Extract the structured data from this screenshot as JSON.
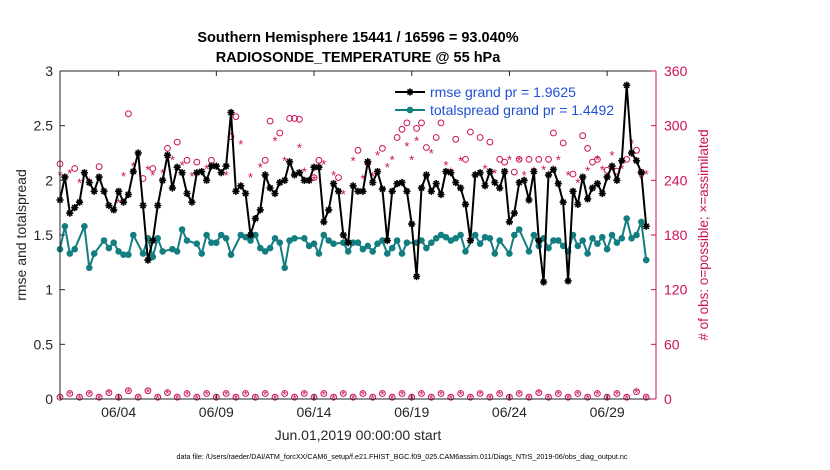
{
  "chart_data": {
    "type": "line",
    "title_line1": "Southern Hemisphere 15441 / 16596 = 93.040%",
    "title_line2": "RADIOSONDE_TEMPERATURE @ 55 hPa",
    "xlabel": "Jun.01,2019 00:00:00 start",
    "ylabel_left": "rmse and totalspread",
    "ylabel_right": "# of obs: o=possible; ×=assimilated",
    "footer": "data file: /Users/raeder/DAI/ATM_forcXX/CAM6_setup/f.e21.FHIST_BGC.f09_025.CAM6assim.011/Diags_NTrS_2019-06/obs_diag_output.nc",
    "xlim": [
      0,
      30.5
    ],
    "ylim_left": [
      0,
      3
    ],
    "ylim_right": [
      0,
      360
    ],
    "x_ticks": [
      3,
      8,
      13,
      18,
      23,
      28
    ],
    "x_tick_labels": [
      "06/04",
      "06/09",
      "06/14",
      "06/19",
      "06/24",
      "06/29"
    ],
    "y_left_ticks": [
      0,
      0.5,
      1,
      1.5,
      2,
      2.5,
      3
    ],
    "y_left_tick_labels": [
      "0",
      "0.5",
      "1",
      "1.5",
      "2",
      "2.5",
      "3"
    ],
    "y_right_ticks": [
      0,
      60,
      120,
      180,
      240,
      300,
      360
    ],
    "y_right_tick_labels": [
      "0",
      "60",
      "120",
      "180",
      "240",
      "300",
      "360"
    ],
    "legend": [
      {
        "name": "rmse grand pr = 1.9625",
        "color": "#000000"
      },
      {
        "name": "totalspread grand pr = 1.4492",
        "color": "#137e80"
      }
    ],
    "rmse": [
      [
        0.0,
        1.82
      ],
      [
        0.25,
        2.03
      ],
      [
        0.5,
        1.7
      ],
      [
        0.75,
        1.75
      ],
      [
        1.0,
        1.8
      ],
      [
        1.25,
        2.07
      ],
      [
        1.5,
        1.98
      ],
      [
        1.75,
        1.9
      ],
      [
        2.0,
        2.03
      ],
      [
        2.25,
        1.9
      ],
      [
        2.5,
        1.77
      ],
      [
        2.75,
        1.73
      ],
      [
        3.0,
        1.9
      ],
      [
        3.25,
        1.8
      ],
      [
        3.5,
        1.87
      ],
      [
        3.75,
        2.08
      ],
      [
        4.0,
        2.25
      ],
      [
        4.25,
        1.77
      ],
      [
        4.5,
        1.27
      ],
      [
        4.75,
        1.45
      ],
      [
        5.0,
        1.77
      ],
      [
        5.25,
        2.0
      ],
      [
        5.5,
        2.23
      ],
      [
        5.75,
        1.93
      ],
      [
        6.0,
        2.12
      ],
      [
        6.25,
        2.07
      ],
      [
        6.5,
        1.88
      ],
      [
        6.75,
        1.8
      ],
      [
        7.0,
        2.07
      ],
      [
        7.25,
        2.08
      ],
      [
        7.5,
        2.0
      ],
      [
        7.75,
        2.13
      ],
      [
        8.0,
        2.13
      ],
      [
        8.25,
        2.07
      ],
      [
        8.5,
        2.13
      ],
      [
        8.75,
        2.62
      ],
      [
        9.0,
        1.9
      ],
      [
        9.25,
        1.95
      ],
      [
        9.5,
        1.88
      ],
      [
        9.75,
        1.5
      ],
      [
        10.0,
        1.65
      ],
      [
        10.25,
        1.73
      ],
      [
        10.5,
        2.05
      ],
      [
        10.75,
        1.93
      ],
      [
        11.0,
        1.88
      ],
      [
        11.25,
        1.98
      ],
      [
        11.5,
        2.0
      ],
      [
        11.75,
        2.17
      ],
      [
        12.0,
        2.05
      ],
      [
        12.25,
        2.07
      ],
      [
        12.5,
        2.0
      ],
      [
        12.75,
        2.0
      ],
      [
        13.0,
        2.12
      ],
      [
        13.25,
        2.12
      ],
      [
        13.5,
        1.62
      ],
      [
        13.75,
        1.73
      ],
      [
        14.0,
        1.97
      ],
      [
        14.25,
        1.9
      ],
      [
        14.5,
        1.5
      ],
      [
        14.75,
        1.43
      ],
      [
        15.0,
        1.95
      ],
      [
        15.25,
        1.9
      ],
      [
        15.5,
        1.9
      ],
      [
        15.75,
        2.17
      ],
      [
        16.0,
        1.98
      ],
      [
        16.25,
        2.08
      ],
      [
        16.5,
        1.92
      ],
      [
        16.75,
        1.45
      ],
      [
        17.0,
        1.9
      ],
      [
        17.25,
        1.97
      ],
      [
        17.5,
        1.98
      ],
      [
        17.75,
        1.9
      ],
      [
        18.0,
        1.6
      ],
      [
        18.25,
        1.12
      ],
      [
        18.5,
        1.93
      ],
      [
        18.75,
        2.05
      ],
      [
        19.0,
        1.9
      ],
      [
        19.25,
        1.97
      ],
      [
        19.5,
        1.87
      ],
      [
        19.75,
        2.08
      ],
      [
        20.0,
        2.07
      ],
      [
        20.25,
        1.98
      ],
      [
        20.5,
        1.93
      ],
      [
        20.75,
        1.78
      ],
      [
        21.0,
        1.45
      ],
      [
        21.25,
        2.05
      ],
      [
        21.5,
        2.07
      ],
      [
        21.75,
        1.95
      ],
      [
        22.0,
        2.08
      ],
      [
        22.25,
        1.98
      ],
      [
        22.5,
        1.93
      ],
      [
        22.75,
        2.08
      ],
      [
        23.0,
        1.62
      ],
      [
        23.25,
        1.7
      ],
      [
        23.5,
        1.98
      ],
      [
        23.75,
        2.0
      ],
      [
        24.0,
        1.82
      ],
      [
        24.25,
        2.08
      ],
      [
        24.5,
        1.45
      ],
      [
        24.75,
        1.07
      ],
      [
        25.0,
        2.05
      ],
      [
        25.25,
        2.1
      ],
      [
        25.5,
        1.97
      ],
      [
        25.75,
        1.8
      ],
      [
        26.0,
        1.08
      ],
      [
        26.25,
        1.9
      ],
      [
        26.5,
        1.78
      ],
      [
        26.75,
        2.03
      ],
      [
        27.0,
        1.83
      ],
      [
        27.25,
        1.93
      ],
      [
        27.5,
        1.97
      ],
      [
        27.75,
        1.88
      ],
      [
        28.0,
        2.03
      ],
      [
        28.25,
        2.13
      ],
      [
        28.5,
        2.0
      ],
      [
        28.75,
        2.18
      ],
      [
        29.0,
        2.87
      ],
      [
        29.25,
        2.25
      ],
      [
        29.5,
        2.18
      ],
      [
        29.75,
        2.07
      ],
      [
        30.0,
        1.58
      ]
    ],
    "totalspread": [
      [
        0.0,
        1.37
      ],
      [
        0.25,
        1.58
      ],
      [
        0.5,
        1.33
      ],
      [
        0.75,
        1.37
      ],
      [
        1.25,
        1.58
      ],
      [
        1.5,
        1.2
      ],
      [
        1.75,
        1.33
      ],
      [
        2.25,
        1.45
      ],
      [
        2.5,
        1.38
      ],
      [
        2.75,
        1.43
      ],
      [
        3.0,
        1.35
      ],
      [
        3.25,
        1.32
      ],
      [
        3.5,
        1.32
      ],
      [
        3.75,
        1.5
      ],
      [
        4.25,
        1.33
      ],
      [
        4.5,
        1.47
      ],
      [
        4.75,
        1.3
      ],
      [
        5.0,
        1.47
      ],
      [
        5.25,
        1.35
      ],
      [
        5.75,
        1.37
      ],
      [
        6.0,
        1.35
      ],
      [
        6.25,
        1.55
      ],
      [
        6.5,
        1.45
      ],
      [
        7.0,
        1.42
      ],
      [
        7.25,
        1.33
      ],
      [
        7.5,
        1.5
      ],
      [
        7.75,
        1.43
      ],
      [
        8.0,
        1.43
      ],
      [
        8.25,
        1.5
      ],
      [
        8.5,
        1.47
      ],
      [
        8.75,
        1.32
      ],
      [
        9.25,
        1.5
      ],
      [
        9.5,
        1.48
      ],
      [
        9.75,
        1.45
      ],
      [
        10.0,
        1.5
      ],
      [
        10.25,
        1.38
      ],
      [
        10.5,
        1.35
      ],
      [
        10.75,
        1.38
      ],
      [
        11.0,
        1.47
      ],
      [
        11.25,
        1.43
      ],
      [
        11.5,
        1.2
      ],
      [
        11.75,
        1.45
      ],
      [
        12.0,
        1.47
      ],
      [
        12.5,
        1.47
      ],
      [
        12.75,
        1.4
      ],
      [
        13.0,
        1.42
      ],
      [
        13.25,
        1.33
      ],
      [
        13.5,
        1.5
      ],
      [
        13.75,
        1.45
      ],
      [
        14.0,
        1.42
      ],
      [
        14.5,
        1.43
      ],
      [
        14.75,
        1.35
      ],
      [
        15.0,
        1.43
      ],
      [
        15.25,
        1.43
      ],
      [
        15.5,
        1.37
      ],
      [
        15.75,
        1.4
      ],
      [
        16.0,
        1.35
      ],
      [
        16.25,
        1.42
      ],
      [
        16.5,
        1.45
      ],
      [
        16.75,
        1.33
      ],
      [
        17.0,
        1.38
      ],
      [
        17.25,
        1.45
      ],
      [
        17.5,
        1.33
      ],
      [
        17.75,
        1.43
      ],
      [
        18.25,
        1.43
      ],
      [
        18.5,
        1.45
      ],
      [
        18.75,
        1.38
      ],
      [
        19.0,
        1.43
      ],
      [
        19.25,
        1.47
      ],
      [
        19.5,
        1.5
      ],
      [
        19.75,
        1.48
      ],
      [
        20.0,
        1.45
      ],
      [
        20.25,
        1.47
      ],
      [
        20.5,
        1.5
      ],
      [
        20.75,
        1.35
      ],
      [
        21.25,
        1.5
      ],
      [
        21.5,
        1.42
      ],
      [
        21.75,
        1.48
      ],
      [
        22.0,
        1.47
      ],
      [
        22.25,
        1.33
      ],
      [
        22.5,
        1.45
      ],
      [
        23.0,
        1.33
      ],
      [
        23.25,
        1.5
      ],
      [
        23.5,
        1.55
      ],
      [
        24.0,
        1.35
      ],
      [
        24.25,
        1.5
      ],
      [
        24.5,
        1.4
      ],
      [
        24.75,
        1.47
      ],
      [
        25.0,
        1.38
      ],
      [
        25.25,
        1.45
      ],
      [
        25.5,
        1.45
      ],
      [
        25.75,
        1.4
      ],
      [
        26.0,
        1.35
      ],
      [
        26.25,
        1.5
      ],
      [
        26.5,
        1.4
      ],
      [
        26.75,
        1.45
      ],
      [
        27.0,
        1.33
      ],
      [
        27.25,
        1.47
      ],
      [
        27.5,
        1.42
      ],
      [
        27.75,
        1.48
      ],
      [
        28.0,
        1.37
      ],
      [
        28.25,
        1.5
      ],
      [
        28.5,
        1.43
      ],
      [
        28.75,
        1.47
      ],
      [
        29.0,
        1.65
      ],
      [
        29.25,
        1.47
      ],
      [
        29.5,
        1.5
      ],
      [
        29.75,
        1.62
      ],
      [
        30.0,
        1.27
      ]
    ],
    "obs_possible": [
      [
        0.0,
        258
      ],
      [
        0.75,
        253
      ],
      [
        2.0,
        255
      ],
      [
        3.5,
        313
      ],
      [
        4.25,
        242
      ],
      [
        4.75,
        253
      ],
      [
        5.5,
        275
      ],
      [
        6.0,
        282
      ],
      [
        6.5,
        262
      ],
      [
        7.0,
        260
      ],
      [
        7.75,
        262
      ],
      [
        8.75,
        288
      ],
      [
        9.0,
        310
      ],
      [
        10.5,
        262
      ],
      [
        10.75,
        305
      ],
      [
        11.25,
        292
      ],
      [
        11.75,
        308
      ],
      [
        12.0,
        308
      ],
      [
        12.25,
        307
      ],
      [
        13.0,
        243
      ],
      [
        13.25,
        262
      ],
      [
        14.25,
        243
      ],
      [
        15.25,
        273
      ],
      [
        15.75,
        259
      ],
      [
        16.5,
        275
      ],
      [
        17.25,
        287
      ],
      [
        17.5,
        296
      ],
      [
        17.75,
        303
      ],
      [
        18.25,
        297
      ],
      [
        18.5,
        303
      ],
      [
        18.75,
        276
      ],
      [
        19.25,
        287
      ],
      [
        19.5,
        303
      ],
      [
        20.25,
        285
      ],
      [
        20.75,
        263
      ],
      [
        21.0,
        293
      ],
      [
        21.5,
        287
      ],
      [
        22.0,
        282
      ],
      [
        22.5,
        263
      ],
      [
        22.75,
        260
      ],
      [
        23.25,
        249
      ],
      [
        23.5,
        263
      ],
      [
        24.0,
        263
      ],
      [
        24.5,
        263
      ],
      [
        25.0,
        263
      ],
      [
        25.25,
        292
      ],
      [
        25.75,
        281
      ],
      [
        26.25,
        247
      ],
      [
        26.75,
        289
      ],
      [
        27.0,
        275
      ],
      [
        27.25,
        260
      ],
      [
        27.5,
        263
      ],
      [
        28.0,
        251
      ],
      [
        28.5,
        250
      ],
      [
        29.0,
        263
      ],
      [
        29.5,
        273
      ],
      [
        29.75,
        249
      ]
    ],
    "obs_assimilated": [
      [
        0.0,
        246
      ],
      [
        0.5,
        248
      ],
      [
        1.0,
        238
      ],
      [
        1.5,
        239
      ],
      [
        2.25,
        228
      ],
      [
        3.0,
        216
      ],
      [
        3.25,
        245
      ],
      [
        3.75,
        256
      ],
      [
        4.5,
        252
      ],
      [
        4.75,
        246
      ],
      [
        5.25,
        248
      ],
      [
        5.75,
        263
      ],
      [
        6.25,
        257
      ],
      [
        6.75,
        245
      ],
      [
        7.5,
        253
      ],
      [
        8.5,
        246
      ],
      [
        9.25,
        280
      ],
      [
        9.75,
        244
      ],
      [
        10.25,
        255
      ],
      [
        10.5,
        244
      ],
      [
        11.0,
        284
      ],
      [
        11.5,
        262
      ],
      [
        12.25,
        276
      ],
      [
        12.5,
        250
      ],
      [
        13.0,
        241
      ],
      [
        13.5,
        258
      ],
      [
        14.0,
        246
      ],
      [
        14.5,
        225
      ],
      [
        15.0,
        262
      ],
      [
        15.5,
        242
      ],
      [
        16.0,
        245
      ],
      [
        16.25,
        268
      ],
      [
        16.75,
        255
      ],
      [
        17.0,
        263
      ],
      [
        17.75,
        278
      ],
      [
        18.0,
        263
      ],
      [
        18.25,
        284
      ],
      [
        19.0,
        270
      ],
      [
        19.75,
        257
      ],
      [
        20.0,
        250
      ],
      [
        20.5,
        262
      ],
      [
        21.25,
        246
      ],
      [
        21.75,
        253
      ],
      [
        22.25,
        248
      ],
      [
        23.0,
        263
      ],
      [
        23.5,
        262
      ],
      [
        23.75,
        246
      ],
      [
        24.25,
        251
      ],
      [
        24.75,
        252
      ],
      [
        25.5,
        263
      ],
      [
        26.0,
        246
      ],
      [
        26.5,
        238
      ],
      [
        27.0,
        251
      ],
      [
        27.5,
        263
      ],
      [
        27.75,
        252
      ],
      [
        28.25,
        268
      ],
      [
        28.75,
        253
      ],
      [
        29.25,
        281
      ],
      [
        29.75,
        242
      ],
      [
        30.0,
        247
      ]
    ],
    "obs_bottom_x": [
      0.0,
      1.0,
      2.0,
      3.0,
      4.0,
      5.0,
      6.0,
      7.0,
      8.0,
      9.0,
      10.0,
      11.0,
      12.0,
      13.0,
      14.0,
      15.0,
      16.0,
      17.0,
      18.0,
      19.0,
      20.0,
      21.0,
      22.0,
      23.0,
      24.0,
      25.0,
      26.0,
      27.0,
      28.0,
      29.0,
      30.0,
      0.5,
      1.5,
      2.5,
      3.5,
      4.5,
      5.5,
      6.5,
      7.5,
      8.5,
      9.5,
      10.5,
      11.5,
      12.5,
      13.5,
      14.5,
      15.5,
      16.5,
      17.5,
      18.5,
      19.5,
      20.5,
      21.5,
      22.5,
      23.5,
      24.5,
      25.5,
      26.5,
      27.5,
      28.5,
      29.5
    ],
    "obs_bottom_y": [
      2,
      2,
      2,
      2,
      2,
      2,
      2,
      2,
      2,
      2,
      2,
      2,
      2,
      2,
      2,
      2,
      2,
      2,
      2,
      2,
      2,
      2,
      2,
      2,
      2,
      2,
      2,
      2,
      2,
      2,
      2,
      6,
      6,
      7,
      9,
      9,
      7,
      6,
      6,
      6,
      6,
      6,
      6,
      6,
      6,
      6,
      6,
      6,
      6,
      6,
      6,
      6,
      6,
      6,
      6,
      7,
      6,
      6,
      6,
      6,
      8
    ],
    "colors": {
      "rmse": "#000000",
      "totalspread": "#137e80",
      "obs": "#cc0f5b",
      "legend_text": "#1f4fd6",
      "axis": "#262626"
    }
  }
}
